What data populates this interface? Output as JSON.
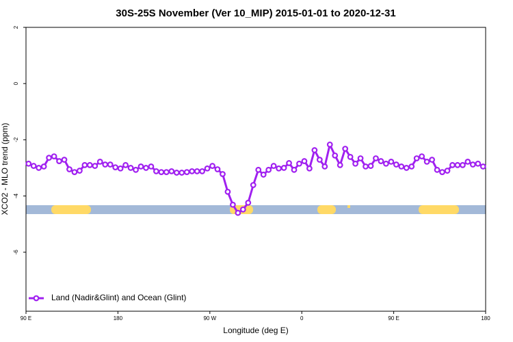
{
  "chart_data": {
    "type": "line",
    "title": "30S-25S November (Ver 10_MIP)   2015-01-01 to 2020-12-31",
    "x_label": "Longitude (deg E)",
    "y_label": "XCO2 - MLO trend (ppm)",
    "xlim": [
      90,
      540
    ],
    "ylim": [
      -8.1,
      2
    ],
    "xticks": [
      {
        "value": 90,
        "label": "90 E"
      },
      180,
      {
        "value": 270,
        "label": "90 W"
      },
      {
        "value": 360,
        "label": "0"
      },
      {
        "value": 450,
        "label": "90 E"
      },
      {
        "value": 540,
        "label": "180"
      }
    ],
    "yticks": [
      2,
      0,
      -2,
      -4,
      -6
    ],
    "legend": "bottom-left",
    "series": [
      {
        "name": "Land (Nadir&Glint) and Ocean (Glint)",
        "color": "#a020f0",
        "x": [
          92.5,
          97.5,
          102.5,
          107.5,
          112.5,
          117.5,
          122.5,
          127.5,
          132.5,
          137.5,
          142.5,
          147.5,
          152.5,
          157.5,
          162.5,
          167.5,
          172.5,
          177.5,
          182.5,
          187.5,
          192.5,
          197.5,
          202.5,
          207.5,
          212.5,
          217.5,
          222.5,
          227.5,
          232.5,
          237.5,
          242.5,
          247.5,
          252.5,
          257.5,
          262.5,
          267.5,
          272.5,
          277.5,
          282.5,
          287.5,
          292.5,
          297.5,
          302.5,
          307.5,
          312.5,
          317.5,
          322.5,
          327.5,
          332.5,
          337.5,
          342.5,
          347.5,
          352.5,
          357.5,
          362.5,
          367.5,
          372.5,
          377.5,
          382.5,
          387.5,
          392.5,
          397.5,
          402.5,
          407.5,
          412.5,
          417.5,
          422.5,
          427.5,
          432.5,
          437.5,
          442.5,
          447.5,
          452.5,
          457.5,
          462.5,
          467.5,
          472.5,
          477.5,
          482.5,
          487.5,
          492.5,
          497.5,
          502.5,
          507.5,
          512.5,
          517.5,
          522.5,
          527.5,
          532.5,
          537.5
        ],
        "values": [
          -2.85,
          -2.93,
          -3.0,
          -2.95,
          -2.64,
          -2.59,
          -2.76,
          -2.71,
          -3.05,
          -3.15,
          -3.1,
          -2.9,
          -2.9,
          -2.93,
          -2.78,
          -2.88,
          -2.88,
          -2.98,
          -3.02,
          -2.9,
          -3.0,
          -3.07,
          -2.95,
          -3.0,
          -2.95,
          -3.12,
          -3.15,
          -3.15,
          -3.12,
          -3.17,
          -3.17,
          -3.15,
          -3.12,
          -3.12,
          -3.12,
          -3.02,
          -2.93,
          -3.05,
          -3.22,
          -3.85,
          -4.31,
          -4.6,
          -4.48,
          -4.24,
          -3.61,
          -3.07,
          -3.24,
          -3.07,
          -2.93,
          -3.02,
          -3.0,
          -2.83,
          -3.07,
          -2.85,
          -2.76,
          -3.02,
          -2.37,
          -2.71,
          -2.95,
          -2.17,
          -2.56,
          -2.9,
          -2.32,
          -2.61,
          -2.85,
          -2.66,
          -2.95,
          -2.93,
          -2.66,
          -2.76,
          -2.85,
          -2.78,
          -2.88,
          -2.95,
          -3.0,
          -2.95,
          -2.66,
          -2.59,
          -2.78,
          -2.71,
          -3.07,
          -3.15,
          -3.1,
          -2.9,
          -2.9,
          -2.9,
          -2.78,
          -2.88,
          -2.85,
          -2.95
        ]
      }
    ]
  }
}
